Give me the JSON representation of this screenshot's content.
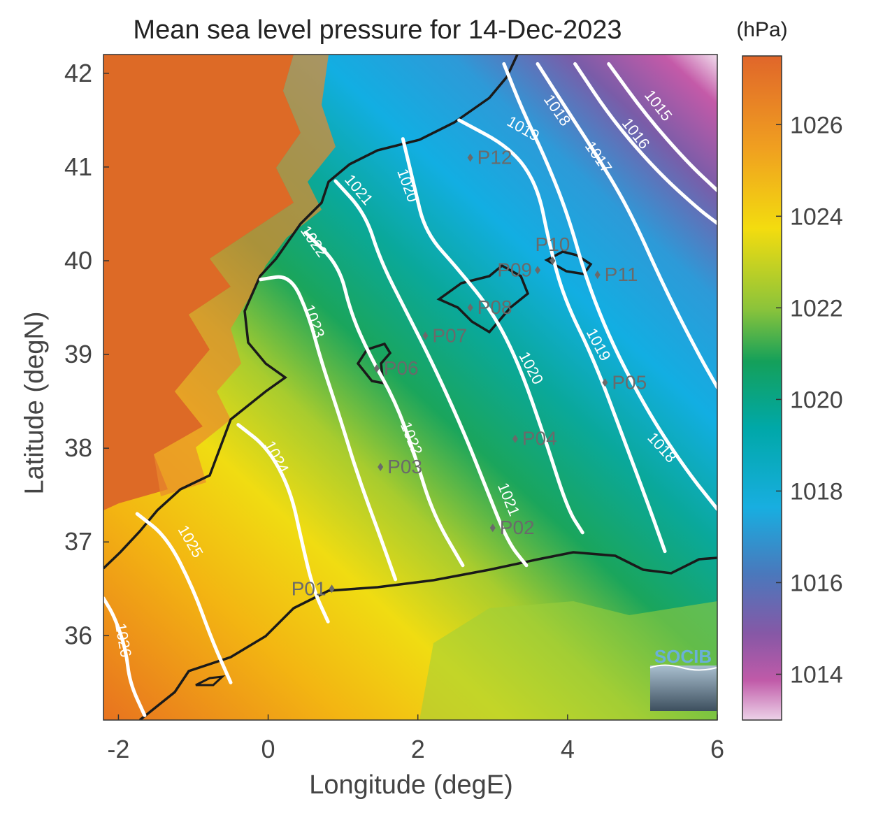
{
  "title": "Mean sea level pressure for 14-Dec-2023",
  "units": "(hPa)",
  "xlabel": "Longitude (degE)",
  "ylabel": "Latitude (degN)",
  "logo": "SOCIB",
  "x_ticks": [
    "-2",
    "0",
    "2",
    "4",
    "6"
  ],
  "y_ticks": [
    "42",
    "41",
    "40",
    "39",
    "38",
    "37",
    "36"
  ],
  "colorbar_ticks": [
    "1026",
    "1024",
    "1022",
    "1020",
    "1018",
    "1016",
    "1014"
  ],
  "colors": {
    "high": "#e06a2a",
    "yellow": "#f2dc10",
    "green": "#14a05a",
    "teal": "#00a7b8",
    "blue": "#18aee0",
    "purple": "#8a5aa8",
    "pink": "#e8c8e2",
    "contour": "#ffffff",
    "coast": "#1a1a1a",
    "station": "#6a6a6a"
  },
  "chart_data": {
    "type": "map",
    "xlim": [
      -2.2,
      6
    ],
    "ylim": [
      35.1,
      42.2
    ],
    "colorbar_range": [
      1013,
      1027.5
    ],
    "contours": [
      {
        "level": "1015",
        "points": [
          [
            4.55,
            42.1
          ],
          [
            5.05,
            41.55
          ],
          [
            5.6,
            41.05
          ],
          [
            6.0,
            40.75
          ]
        ]
      },
      {
        "level": "1016",
        "points": [
          [
            4.1,
            42.1
          ],
          [
            4.6,
            41.5
          ],
          [
            5.2,
            40.95
          ],
          [
            5.75,
            40.55
          ],
          [
            6.0,
            40.4
          ]
        ]
      },
      {
        "level": "1017",
        "points": [
          [
            3.6,
            42.1
          ],
          [
            4.0,
            41.6
          ],
          [
            4.45,
            41.05
          ],
          [
            4.85,
            40.5
          ],
          [
            5.3,
            39.7
          ],
          [
            5.75,
            39.0
          ],
          [
            6.0,
            38.65
          ]
        ]
      },
      {
        "level": "1018",
        "points": [
          [
            3.15,
            42.1
          ],
          [
            3.4,
            41.6
          ],
          [
            3.7,
            41.1
          ],
          [
            4.0,
            40.5
          ],
          [
            4.25,
            39.8
          ],
          [
            4.6,
            39.1
          ],
          [
            5.1,
            38.35
          ],
          [
            5.6,
            37.75
          ],
          [
            6.0,
            37.35
          ]
        ]
      },
      {
        "level": "1019",
        "points": [
          [
            2.55,
            41.5
          ],
          [
            3.25,
            41.2
          ],
          [
            3.6,
            40.8
          ],
          [
            3.75,
            40.2
          ],
          [
            3.95,
            39.6
          ],
          [
            4.35,
            38.95
          ],
          [
            4.75,
            38.1
          ],
          [
            5.1,
            37.35
          ],
          [
            5.3,
            36.9
          ]
        ]
      },
      {
        "level": "1020",
        "points": [
          [
            1.8,
            41.3
          ],
          [
            1.95,
            40.8
          ],
          [
            2.1,
            40.3
          ],
          [
            2.55,
            39.9
          ],
          [
            3.0,
            39.45
          ],
          [
            3.35,
            38.9
          ],
          [
            3.7,
            38.1
          ],
          [
            4.0,
            37.35
          ],
          [
            4.2,
            37.1
          ]
        ]
      },
      {
        "level": "1021",
        "points": [
          [
            0.9,
            40.85
          ],
          [
            1.3,
            40.5
          ],
          [
            1.5,
            40.0
          ],
          [
            1.85,
            39.45
          ],
          [
            2.2,
            38.9
          ],
          [
            2.6,
            38.2
          ],
          [
            2.9,
            37.6
          ],
          [
            3.2,
            37.0
          ],
          [
            3.45,
            36.75
          ]
        ]
      },
      {
        "level": "1022",
        "points": [
          [
            0.5,
            40.3
          ],
          [
            0.95,
            39.95
          ],
          [
            1.1,
            39.45
          ],
          [
            1.35,
            39.0
          ],
          [
            1.7,
            38.5
          ],
          [
            1.95,
            37.95
          ],
          [
            2.2,
            37.3
          ],
          [
            2.6,
            36.75
          ]
        ]
      },
      {
        "level": "1023",
        "points": [
          [
            -0.1,
            39.8
          ],
          [
            0.3,
            39.85
          ],
          [
            0.55,
            39.4
          ],
          [
            0.7,
            38.95
          ],
          [
            0.95,
            38.35
          ],
          [
            1.2,
            37.7
          ],
          [
            1.5,
            37.05
          ],
          [
            1.7,
            36.6
          ]
        ]
      },
      {
        "level": "1024",
        "points": [
          [
            -0.4,
            38.25
          ],
          [
            0.0,
            38.0
          ],
          [
            0.3,
            37.55
          ],
          [
            0.45,
            37.0
          ],
          [
            0.6,
            36.5
          ],
          [
            0.8,
            36.15
          ]
        ]
      },
      {
        "level": "1025",
        "points": [
          [
            -1.75,
            37.3
          ],
          [
            -1.35,
            37.05
          ],
          [
            -1.0,
            36.5
          ],
          [
            -0.75,
            35.95
          ],
          [
            -0.5,
            35.5
          ]
        ]
      },
      {
        "level": "1026",
        "points": [
          [
            -2.2,
            36.4
          ],
          [
            -2.05,
            36.2
          ],
          [
            -1.9,
            35.85
          ],
          [
            -1.85,
            35.5
          ],
          [
            -1.65,
            35.15
          ]
        ]
      }
    ],
    "contour_labels": [
      {
        "text": "1015",
        "x": 5.2,
        "y": 41.65,
        "angle": 52
      },
      {
        "text": "1016",
        "x": 4.9,
        "y": 41.35,
        "angle": 52
      },
      {
        "text": "1017",
        "x": 4.4,
        "y": 41.1,
        "angle": 55
      },
      {
        "text": "1018",
        "x": 3.85,
        "y": 41.6,
        "angle": 55
      },
      {
        "text": "1019",
        "x": 3.4,
        "y": 41.4,
        "angle": 30
      },
      {
        "text": "1021",
        "x": 1.2,
        "y": 40.75,
        "angle": 50
      },
      {
        "text": "1020",
        "x": 1.85,
        "y": 40.8,
        "angle": 70
      },
      {
        "text": "1022",
        "x": 0.6,
        "y": 40.2,
        "angle": 55
      },
      {
        "text": "1023",
        "x": 0.6,
        "y": 39.35,
        "angle": 70
      },
      {
        "text": "1024",
        "x": 0.1,
        "y": 37.9,
        "angle": 62
      },
      {
        "text": "1025",
        "x": -1.05,
        "y": 37.0,
        "angle": 60
      },
      {
        "text": "1026",
        "x": -1.95,
        "y": 35.95,
        "angle": 80
      },
      {
        "text": "1022",
        "x": 1.9,
        "y": 38.1,
        "angle": 68
      },
      {
        "text": "1021",
        "x": 3.2,
        "y": 37.45,
        "angle": 68
      },
      {
        "text": "1020",
        "x": 3.5,
        "y": 38.85,
        "angle": 62
      },
      {
        "text": "1019",
        "x": 4.4,
        "y": 39.1,
        "angle": 62
      },
      {
        "text": "1018",
        "x": 5.25,
        "y": 38.0,
        "angle": 48
      }
    ],
    "stations": [
      {
        "name": "P01",
        "lon": 0.85,
        "lat": 36.5,
        "label_side": "left"
      },
      {
        "name": "P02",
        "lon": 3.0,
        "lat": 37.15,
        "label_side": "right"
      },
      {
        "name": "P03",
        "lon": 1.5,
        "lat": 37.8,
        "label_side": "right"
      },
      {
        "name": "P04",
        "lon": 3.3,
        "lat": 38.1,
        "label_side": "right"
      },
      {
        "name": "P05",
        "lon": 4.5,
        "lat": 38.7,
        "label_side": "right"
      },
      {
        "name": "P06",
        "lon": 1.45,
        "lat": 38.85,
        "label_side": "right"
      },
      {
        "name": "P07",
        "lon": 2.1,
        "lat": 39.2,
        "label_side": "right"
      },
      {
        "name": "P08",
        "lon": 2.7,
        "lat": 39.5,
        "label_side": "right"
      },
      {
        "name": "P09",
        "lon": 3.6,
        "lat": 39.9,
        "label_side": "left"
      },
      {
        "name": "P10",
        "lon": 3.8,
        "lat": 40.0,
        "label_side": "top"
      },
      {
        "name": "P11",
        "lon": 4.4,
        "lat": 39.85,
        "label_side": "right"
      },
      {
        "name": "P12",
        "lon": 2.7,
        "lat": 41.1,
        "label_side": "right"
      }
    ]
  }
}
